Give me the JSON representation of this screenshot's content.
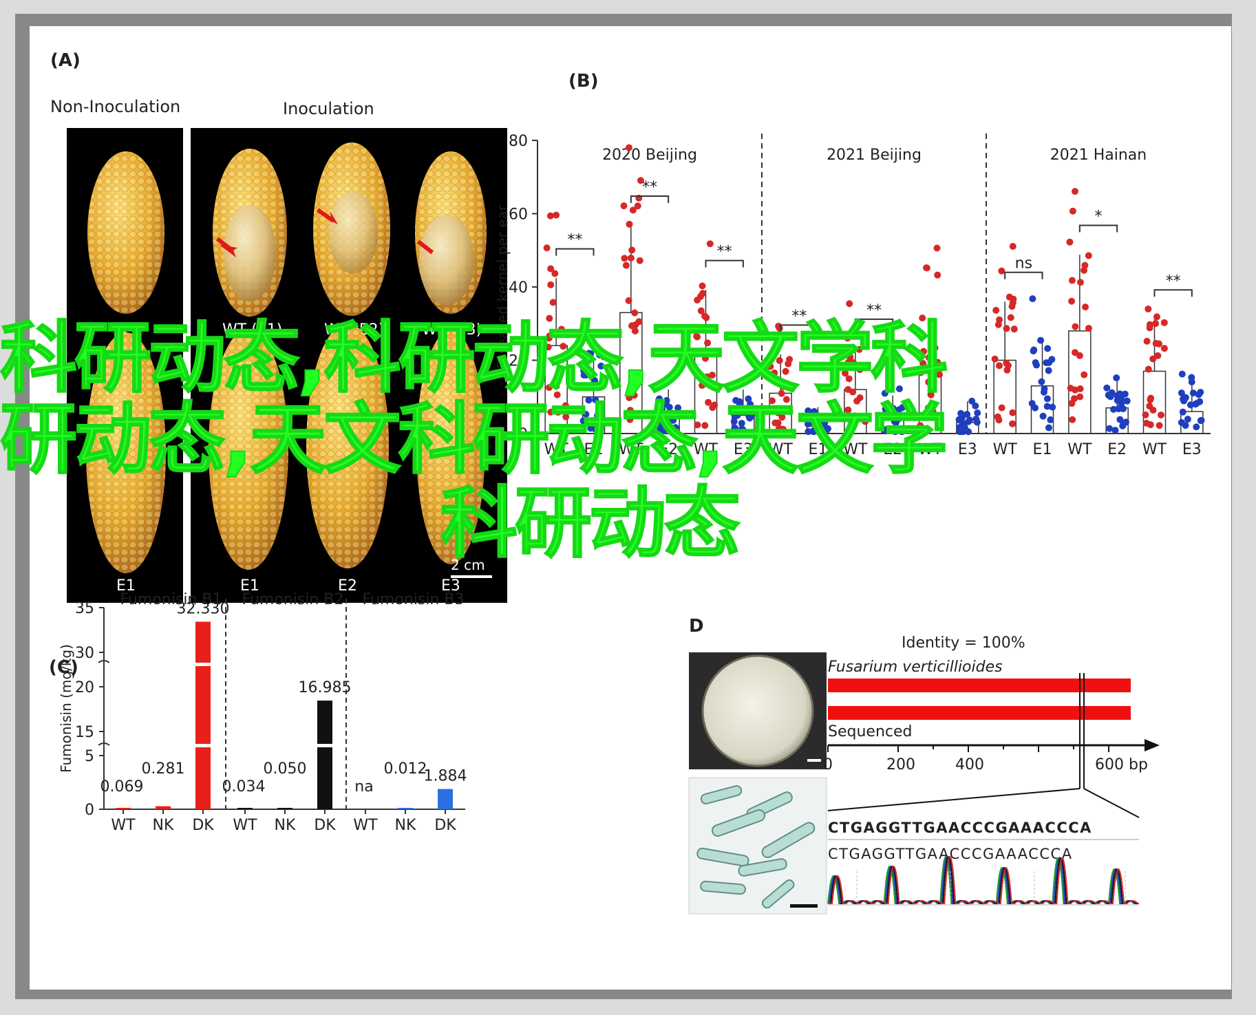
{
  "panel_a": {
    "letter": "(A)",
    "group_left": "Non-Inoculation",
    "group_right": "Inoculation",
    "top_labels": [
      "WT",
      "WT (E1)",
      "WT (E2)",
      "WT (E3)"
    ],
    "bottom_labels": [
      "E1",
      "E1",
      "E2",
      "E3"
    ],
    "scale": "2 cm"
  },
  "panel_b": {
    "letter": "(B)",
    "chart_data": {
      "type": "scatter",
      "ylabel": "Diseased kernel per ear",
      "ylim": [
        0,
        80
      ],
      "yticks": [
        0,
        20,
        40,
        60,
        80
      ],
      "groups": [
        {
          "title": "2020 Beijing",
          "categories": [
            "WT",
            "E1",
            "WT",
            "E2",
            "WT",
            "E3"
          ],
          "means": [
            24,
            10,
            33,
            5,
            22,
            5
          ],
          "significance": [
            "**",
            "**",
            "**"
          ]
        },
        {
          "title": "2021 Beijing",
          "categories": [
            "WT",
            "E1",
            "WT",
            "E2",
            "WT",
            "E3"
          ],
          "means": [
            11,
            2,
            12,
            4,
            17,
            3
          ],
          "significance": [
            "**",
            "**",
            ""
          ]
        },
        {
          "title": "2021 Hainan",
          "categories": [
            "WT",
            "E1",
            "WT",
            "E2",
            "WT",
            "E3"
          ],
          "means": [
            20,
            13,
            28,
            7,
            17,
            6
          ],
          "significance": [
            "ns",
            "*",
            "**"
          ]
        }
      ],
      "colors": {
        "wt": "#d62828",
        "mutant": "#1f3fbf"
      }
    }
  },
  "panel_c": {
    "letter": "(C)",
    "chart_data": {
      "type": "bar",
      "ylabel": "Fumonisin (mg/kg)",
      "yticks": [
        "35",
        "30",
        "20",
        "15",
        "5",
        "0"
      ],
      "panels": [
        {
          "title": "Fumonisin B1",
          "categories": [
            "WT",
            "NK",
            "DK"
          ],
          "values": [
            0.069,
            0.281,
            32.33
          ],
          "labels": [
            "0.069",
            "0.281",
            "32.330"
          ],
          "color": "#e8201a"
        },
        {
          "title": "Fumonisin B2",
          "categories": [
            "WT",
            "NK",
            "DK"
          ],
          "values": [
            0.034,
            0.05,
            16.985
          ],
          "labels": [
            "0.034",
            "0.050",
            "16.985"
          ],
          "color": "#111111"
        },
        {
          "title": "Fumonisin B3",
          "categories": [
            "WT",
            "NK",
            "DK"
          ],
          "values": [
            null,
            0.012,
            1.884
          ],
          "labels": [
            "na",
            "0.012",
            "1.884"
          ],
          "color": "#2c6fe0"
        }
      ]
    }
  },
  "panel_d": {
    "letter": "D",
    "identity": "Identity = 100%",
    "species": "Fusarium verticillioides",
    "sequenced": "Sequenced",
    "axis_ticks": [
      "0",
      "200",
      "400",
      "600 bp"
    ],
    "sequence_1": "CTGAGGTTGAACCCGAAACCCA",
    "sequence_2": "CTGAGGTTGAACCCGAAACCCA"
  },
  "watermark": {
    "line1": "科研动态,科研动态,天文学科",
    "line2": "研动态,天文科研动态,天文学",
    "line3": "科研动态"
  }
}
